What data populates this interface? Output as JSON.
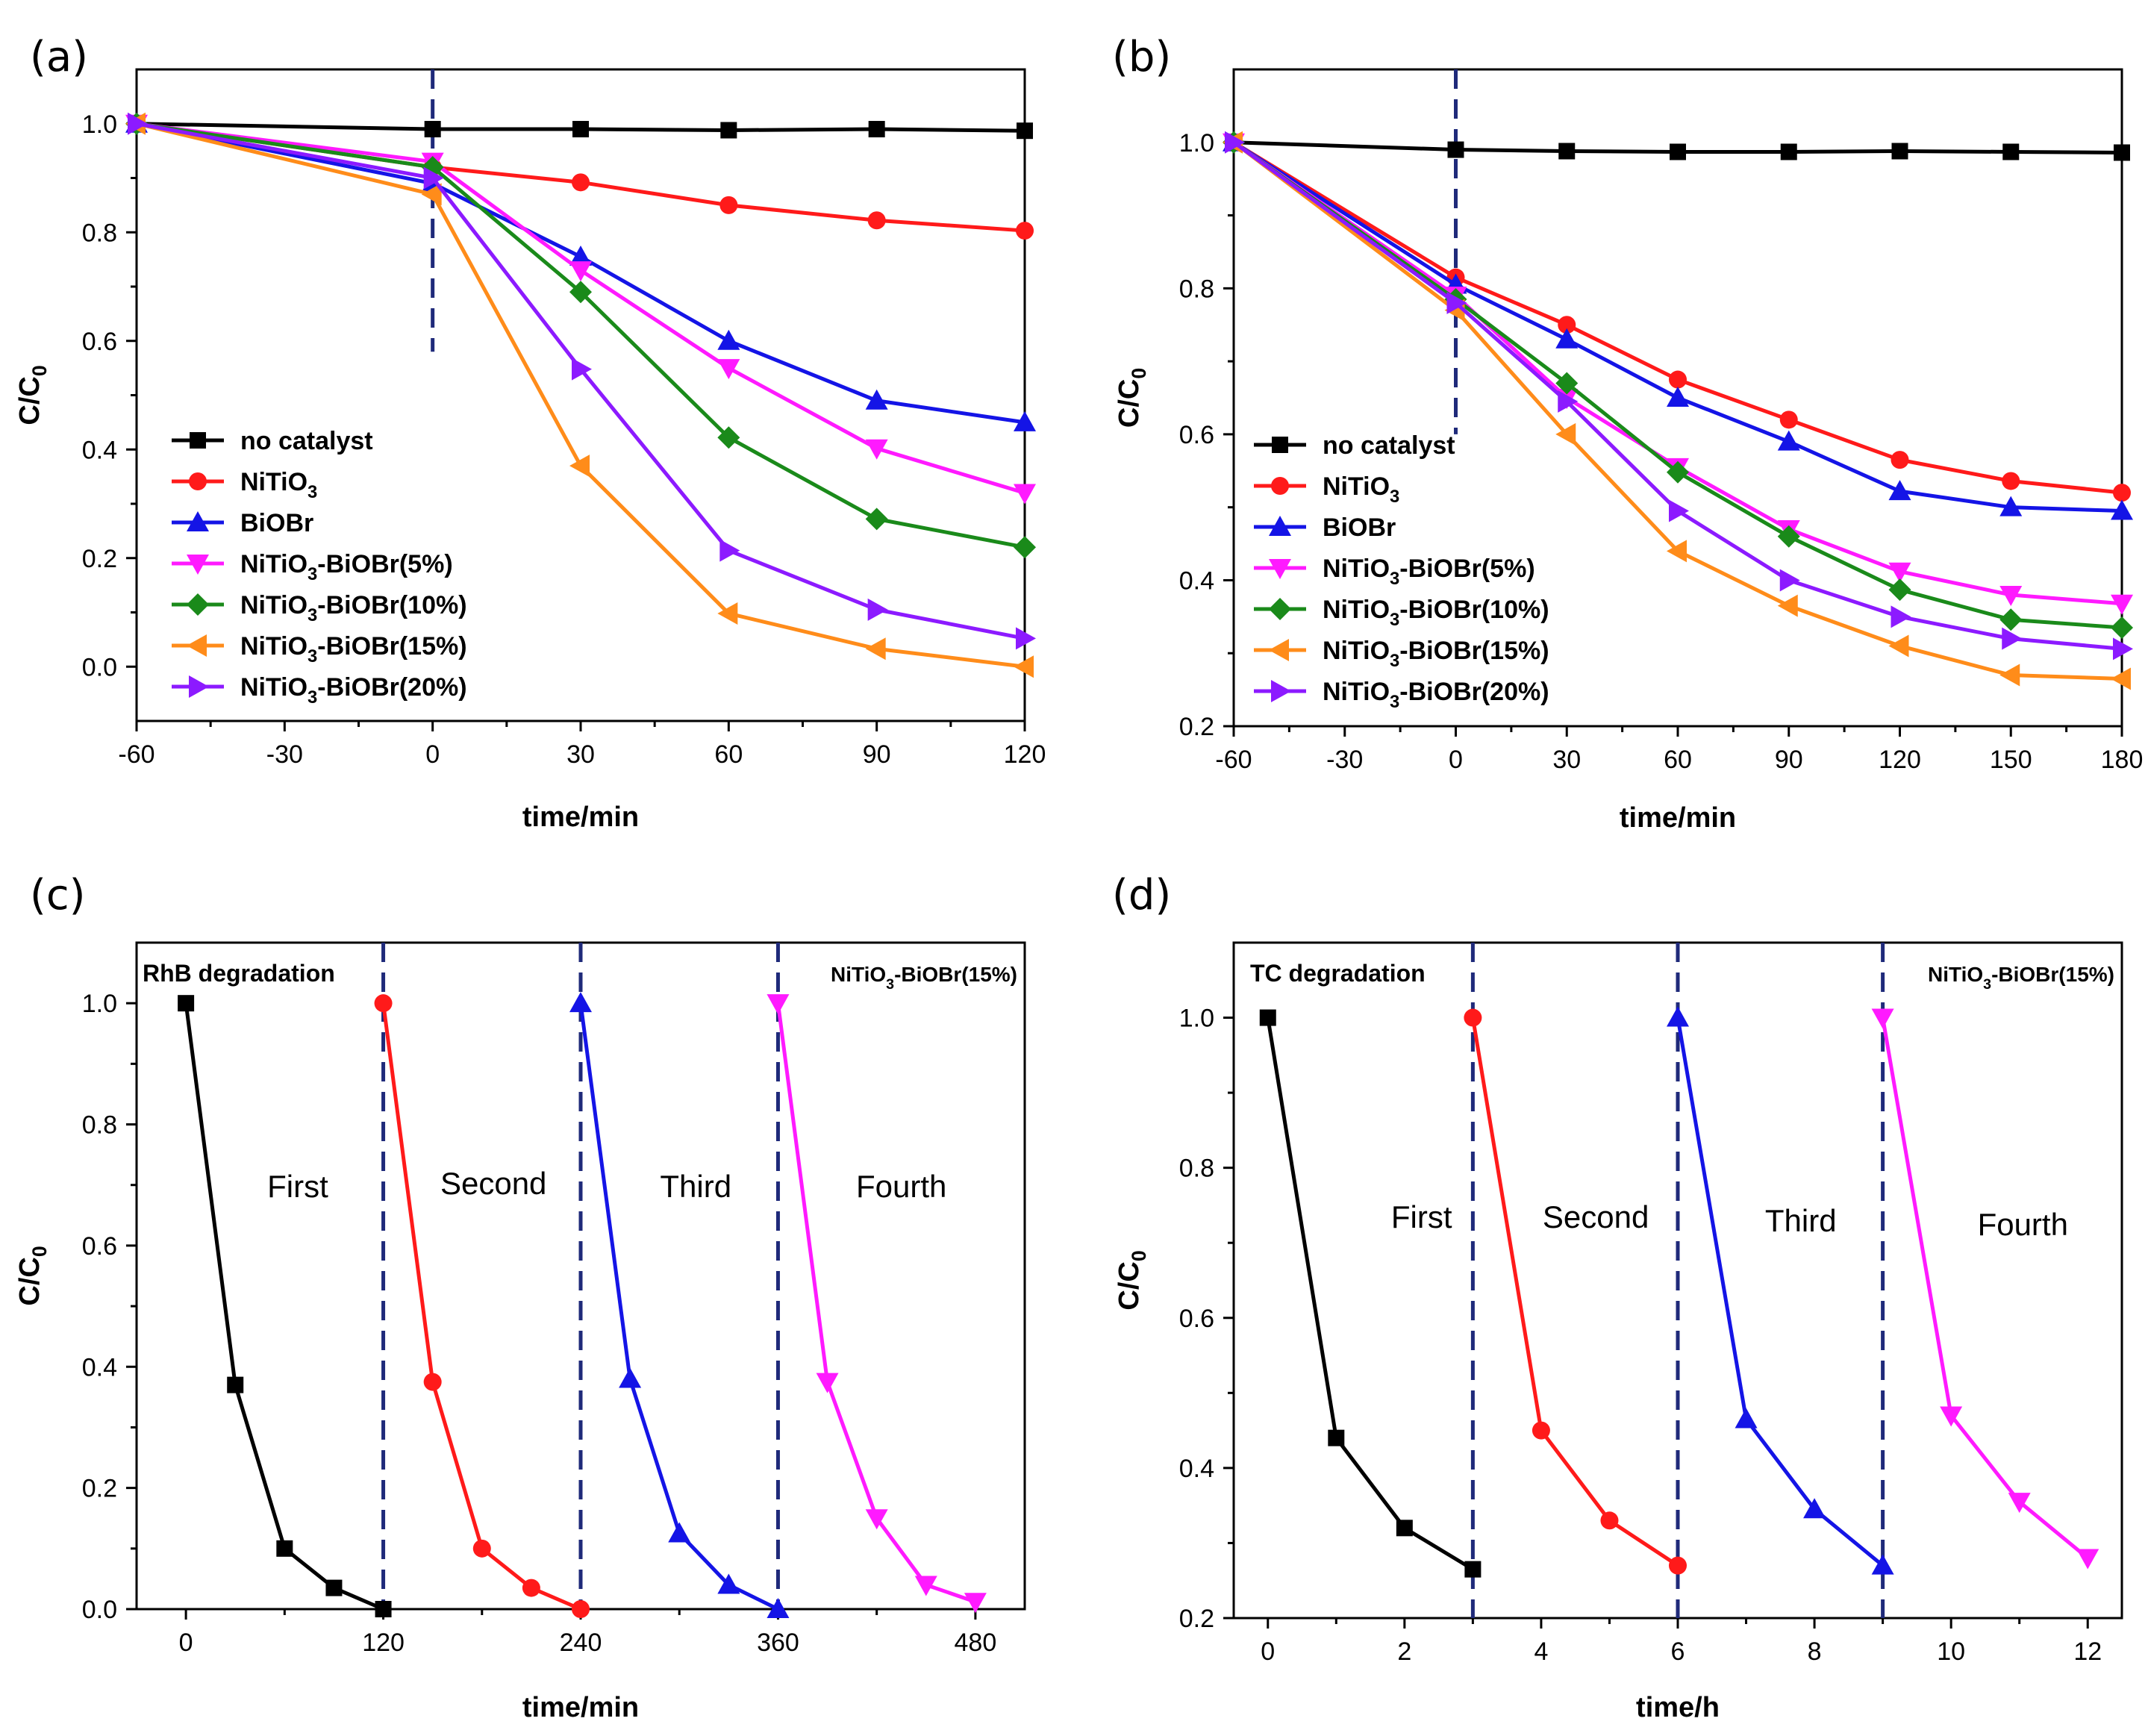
{
  "colors": {
    "black": "#000000",
    "red": "#ff1a1a",
    "blue": "#1414e6",
    "magenta": "#ff1aff",
    "green": "#1a8a1a",
    "orange": "#ff8c1a",
    "purple": "#8c1aff",
    "divider": "#1f2a7a"
  },
  "chart_data": [
    {
      "panel": "(a)",
      "type": "line",
      "xlabel": "time/min",
      "ylabel": "C/C0",
      "xlim": [
        -60,
        120
      ],
      "ylim": [
        -0.1,
        1.1
      ],
      "xticks": [
        -60,
        -30,
        0,
        30,
        60,
        90,
        120
      ],
      "yticks": [
        0.0,
        0.2,
        0.4,
        0.6,
        0.8,
        1.0
      ],
      "x": [
        -60,
        0,
        30,
        60,
        90,
        120
      ],
      "dividers": [
        0
      ],
      "legend_position": "lower-left",
      "series": [
        {
          "name": "no catalyst",
          "legend_text": "no catalyst",
          "color": "black",
          "marker": "square",
          "values": [
            1.0,
            0.99,
            0.99,
            0.988,
            0.99,
            0.987
          ]
        },
        {
          "name": "NiTiO3",
          "legend_text": "NiTiO",
          "legend_sub": "3",
          "legend_tail": "",
          "color": "red",
          "marker": "circle",
          "values": [
            1.0,
            0.92,
            0.892,
            0.85,
            0.822,
            0.803
          ]
        },
        {
          "name": "BiOBr",
          "legend_text": "BiOBr",
          "color": "blue",
          "marker": "triangle-up",
          "values": [
            1.0,
            0.89,
            0.755,
            0.6,
            0.49,
            0.45
          ]
        },
        {
          "name": "NiTiO3-BiOBr(5%)",
          "legend_text": "NiTiO",
          "legend_sub": "3",
          "legend_tail": "-BiOBr(5%)",
          "color": "magenta",
          "marker": "triangle-down",
          "values": [
            1.0,
            0.93,
            0.73,
            0.55,
            0.402,
            0.32
          ]
        },
        {
          "name": "NiTiO3-BiOBr(10%)",
          "legend_text": "NiTiO",
          "legend_sub": "3",
          "legend_tail": "-BiOBr(10%)",
          "color": "green",
          "marker": "diamond",
          "values": [
            1.0,
            0.92,
            0.69,
            0.422,
            0.272,
            0.22
          ]
        },
        {
          "name": "NiTiO3-BiOBr(15%)",
          "legend_text": "NiTiO",
          "legend_sub": "3",
          "legend_tail": "-BiOBr(15%)",
          "color": "orange",
          "marker": "triangle-left",
          "values": [
            1.0,
            0.87,
            0.37,
            0.098,
            0.033,
            0.0
          ]
        },
        {
          "name": "NiTiO3-BiOBr(20%)",
          "legend_text": "NiTiO",
          "legend_sub": "3",
          "legend_tail": "-BiOBr(20%)",
          "color": "purple",
          "marker": "triangle-right",
          "values": [
            1.0,
            0.9,
            0.548,
            0.214,
            0.105,
            0.052
          ]
        }
      ]
    },
    {
      "panel": "(b)",
      "type": "line",
      "xlabel": "time/min",
      "ylabel": "C/C0",
      "xlim": [
        -60,
        180
      ],
      "ylim": [
        0.2,
        1.1
      ],
      "xticks": [
        -60,
        -30,
        0,
        30,
        60,
        90,
        120,
        150,
        180
      ],
      "yticks": [
        0.2,
        0.4,
        0.6,
        0.8,
        1.0
      ],
      "x": [
        -60,
        0,
        30,
        60,
        90,
        120,
        150,
        180
      ],
      "dividers": [
        0
      ],
      "legend_position": "lower-left",
      "series": [
        {
          "name": "no catalyst",
          "legend_text": "no catalyst",
          "color": "black",
          "marker": "square",
          "values": [
            1.0,
            0.99,
            0.988,
            0.987,
            0.987,
            0.988,
            0.987,
            0.986
          ]
        },
        {
          "name": "NiTiO3",
          "legend_text": "NiTiO",
          "legend_sub": "3",
          "legend_tail": "",
          "color": "red",
          "marker": "circle",
          "values": [
            1.0,
            0.815,
            0.75,
            0.675,
            0.62,
            0.565,
            0.536,
            0.52
          ]
        },
        {
          "name": "BiOBr",
          "legend_text": "BiOBr",
          "color": "blue",
          "marker": "triangle-up",
          "values": [
            1.0,
            0.805,
            0.73,
            0.65,
            0.59,
            0.522,
            0.5,
            0.495
          ]
        },
        {
          "name": "NiTiO3-BiOBr(5%)",
          "legend_text": "NiTiO",
          "legend_sub": "3",
          "legend_tail": "-BiOBr(5%)",
          "color": "magenta",
          "marker": "triangle-down",
          "values": [
            1.0,
            0.79,
            0.65,
            0.555,
            0.47,
            0.412,
            0.38,
            0.368
          ]
        },
        {
          "name": "NiTiO3-BiOBr(10%)",
          "legend_text": "NiTiO",
          "legend_sub": "3",
          "legend_tail": "-BiOBr(10%)",
          "color": "green",
          "marker": "diamond",
          "values": [
            1.0,
            0.785,
            0.67,
            0.548,
            0.46,
            0.387,
            0.346,
            0.335
          ]
        },
        {
          "name": "NiTiO3-BiOBr(15%)",
          "legend_text": "NiTiO",
          "legend_sub": "3",
          "legend_tail": "-BiOBr(15%)",
          "color": "orange",
          "marker": "triangle-left",
          "values": [
            1.0,
            0.77,
            0.6,
            0.44,
            0.365,
            0.31,
            0.27,
            0.265
          ]
        },
        {
          "name": "NiTiO3-BiOBr(20%)",
          "legend_text": "NiTiO",
          "legend_sub": "3",
          "legend_tail": "-BiOBr(20%)",
          "color": "purple",
          "marker": "triangle-right",
          "values": [
            1.0,
            0.78,
            0.645,
            0.495,
            0.4,
            0.35,
            0.32,
            0.306
          ]
        }
      ]
    },
    {
      "panel": "(c)",
      "type": "line",
      "xlabel": "time/min",
      "ylabel": "C/C0",
      "xlim": [
        -30,
        510
      ],
      "ylim": [
        0.0,
        1.1
      ],
      "xticks": [
        0,
        120,
        240,
        360,
        480
      ],
      "yticks": [
        0.0,
        0.2,
        0.4,
        0.6,
        0.8,
        1.0
      ],
      "dividers": [
        120,
        240,
        360
      ],
      "note_left": "RhB degradation",
      "note_right": {
        "text": "NiTiO",
        "sub": "3",
        "tail": "-BiOBr(15%)"
      },
      "cycle_labels": [
        {
          "text": "First",
          "x": 68,
          "y": 0.68
        },
        {
          "text": "Second",
          "x": 187,
          "y": 0.685
        },
        {
          "text": "Third",
          "x": 310,
          "y": 0.68
        },
        {
          "text": "Fourth",
          "x": 435,
          "y": 0.68
        }
      ],
      "series": [
        {
          "name": "First",
          "color": "black",
          "marker": "square",
          "x": [
            0,
            30,
            60,
            90,
            120
          ],
          "values": [
            1.0,
            0.37,
            0.1,
            0.035,
            0.0
          ]
        },
        {
          "name": "Second",
          "color": "red",
          "marker": "circle",
          "x": [
            120,
            150,
            180,
            210,
            240
          ],
          "values": [
            1.0,
            0.375,
            0.1,
            0.035,
            0.0
          ]
        },
        {
          "name": "Third",
          "color": "blue",
          "marker": "triangle-up",
          "x": [
            240,
            270,
            300,
            330,
            360
          ],
          "values": [
            1.0,
            0.38,
            0.125,
            0.04,
            0.0
          ]
        },
        {
          "name": "Fourth",
          "color": "magenta",
          "marker": "triangle-down",
          "x": [
            360,
            390,
            420,
            450,
            480
          ],
          "values": [
            1.0,
            0.375,
            0.15,
            0.04,
            0.012
          ]
        }
      ]
    },
    {
      "panel": "(d)",
      "type": "line",
      "xlabel": "time/h",
      "ylabel": "C/C0",
      "xlim": [
        -0.5,
        12.5
      ],
      "ylim": [
        0.2,
        1.1
      ],
      "xticks": [
        0,
        2,
        4,
        6,
        8,
        10,
        12
      ],
      "yticks": [
        0.2,
        0.4,
        0.6,
        0.8,
        1.0
      ],
      "dividers": [
        3,
        6,
        9
      ],
      "note_left": "TC degradation",
      "note_right": {
        "text": "NiTiO",
        "sub": "3",
        "tail": "-BiOBr(15%)"
      },
      "cycle_labels": [
        {
          "text": "First",
          "x": 2.25,
          "y": 0.72
        },
        {
          "text": "Second",
          "x": 4.8,
          "y": 0.72
        },
        {
          "text": "Third",
          "x": 7.8,
          "y": 0.715
        },
        {
          "text": "Fourth",
          "x": 11.05,
          "y": 0.71
        }
      ],
      "series": [
        {
          "name": "First",
          "color": "black",
          "marker": "square",
          "x": [
            0,
            1,
            2,
            3
          ],
          "values": [
            1.0,
            0.44,
            0.32,
            0.265
          ]
        },
        {
          "name": "Second",
          "color": "red",
          "marker": "circle",
          "x": [
            3,
            4,
            5,
            6
          ],
          "values": [
            1.0,
            0.45,
            0.33,
            0.27
          ]
        },
        {
          "name": "Third",
          "color": "blue",
          "marker": "triangle-up",
          "x": [
            6,
            7,
            8,
            9
          ],
          "values": [
            1.0,
            0.465,
            0.345,
            0.27
          ]
        },
        {
          "name": "Fourth",
          "color": "magenta",
          "marker": "triangle-down",
          "x": [
            9,
            10,
            11,
            12
          ],
          "values": [
            1.0,
            0.47,
            0.355,
            0.28
          ]
        }
      ]
    }
  ]
}
